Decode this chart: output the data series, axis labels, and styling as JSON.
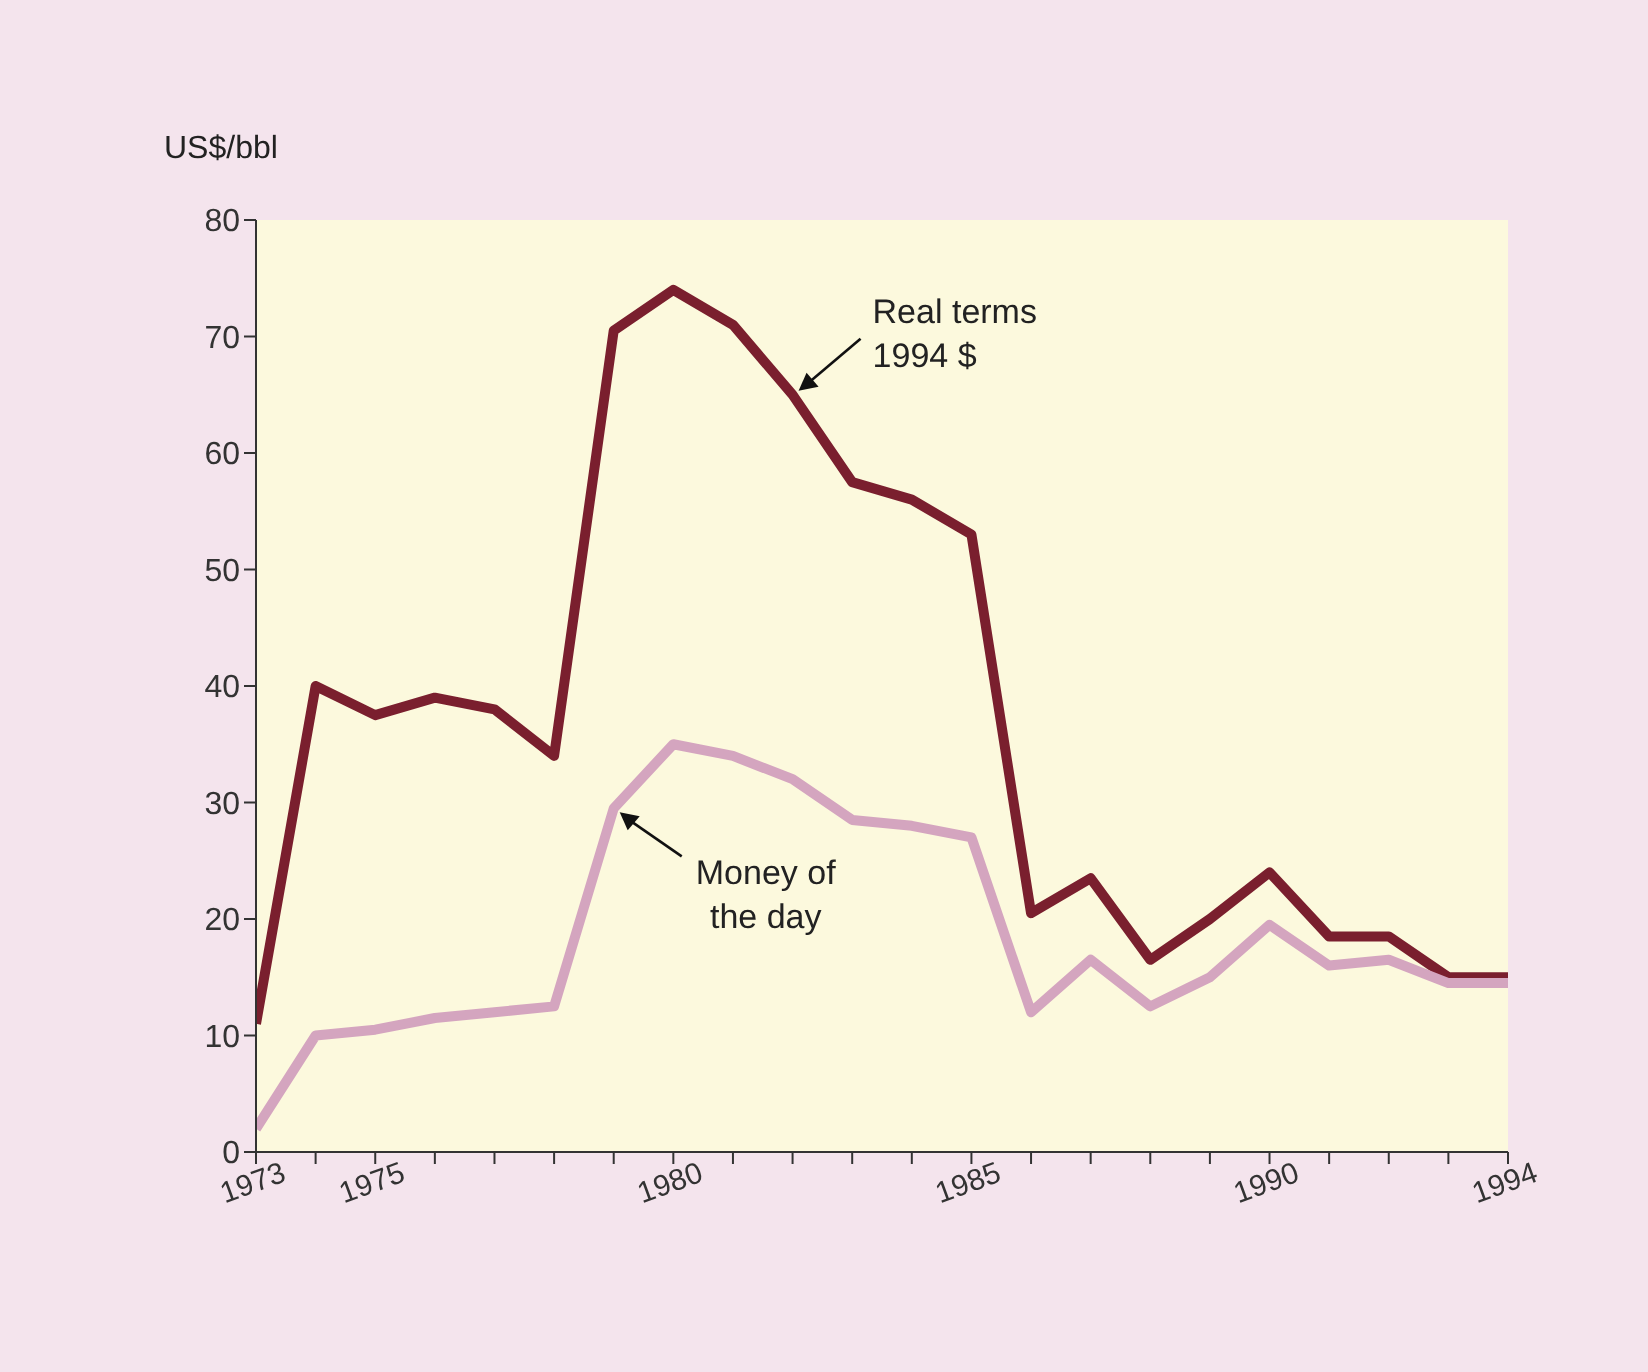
{
  "chart_data": {
    "type": "line",
    "ylabel": "US$/bbl",
    "x": [
      1973,
      1974,
      1975,
      1976,
      1977,
      1978,
      1979,
      1980,
      1981,
      1982,
      1983,
      1984,
      1985,
      1986,
      1987,
      1988,
      1989,
      1990,
      1991,
      1992,
      1993,
      1994
    ],
    "series": [
      {
        "name": "Real terms 1994 $",
        "color": "#7a1f2e",
        "values": [
          11,
          40,
          37.5,
          39,
          38,
          34,
          70.5,
          74,
          71,
          65,
          57.5,
          56,
          53,
          20.5,
          23.5,
          16.5,
          20,
          24,
          18.5,
          18.5,
          15,
          15
        ]
      },
      {
        "name": "Money of the day",
        "color": "#d4a5bf",
        "values": [
          2,
          10,
          10.5,
          11.5,
          12,
          12.5,
          29.5,
          35,
          34,
          32,
          28.5,
          28,
          27,
          12,
          16.5,
          12.5,
          15,
          19.5,
          16,
          16.5,
          14.5,
          14.5
        ]
      }
    ],
    "xlim": [
      1973,
      1994
    ],
    "xticks": [
      1973,
      {
        "value": 1974,
        "label": null
      },
      1975,
      {
        "value": 1976,
        "label": null
      },
      {
        "value": 1977,
        "label": null
      },
      {
        "value": 1978,
        "label": null
      },
      {
        "value": 1979,
        "label": null
      },
      1980,
      {
        "value": 1981,
        "label": null
      },
      {
        "value": 1982,
        "label": null
      },
      {
        "value": 1983,
        "label": null
      },
      {
        "value": 1984,
        "label": null
      },
      1985,
      {
        "value": 1986,
        "label": null
      },
      {
        "value": 1987,
        "label": null
      },
      {
        "value": 1988,
        "label": null
      },
      {
        "value": 1989,
        "label": null
      },
      1990,
      {
        "value": 1991,
        "label": null
      },
      {
        "value": 1992,
        "label": null
      },
      {
        "value": 1993,
        "label": null
      },
      1994
    ],
    "ylim": [
      0,
      80
    ],
    "yticks": [
      0,
      10,
      20,
      30,
      40,
      50,
      60,
      70,
      80
    ],
    "grid": false,
    "marker": "none",
    "line_style": "solid"
  }
}
